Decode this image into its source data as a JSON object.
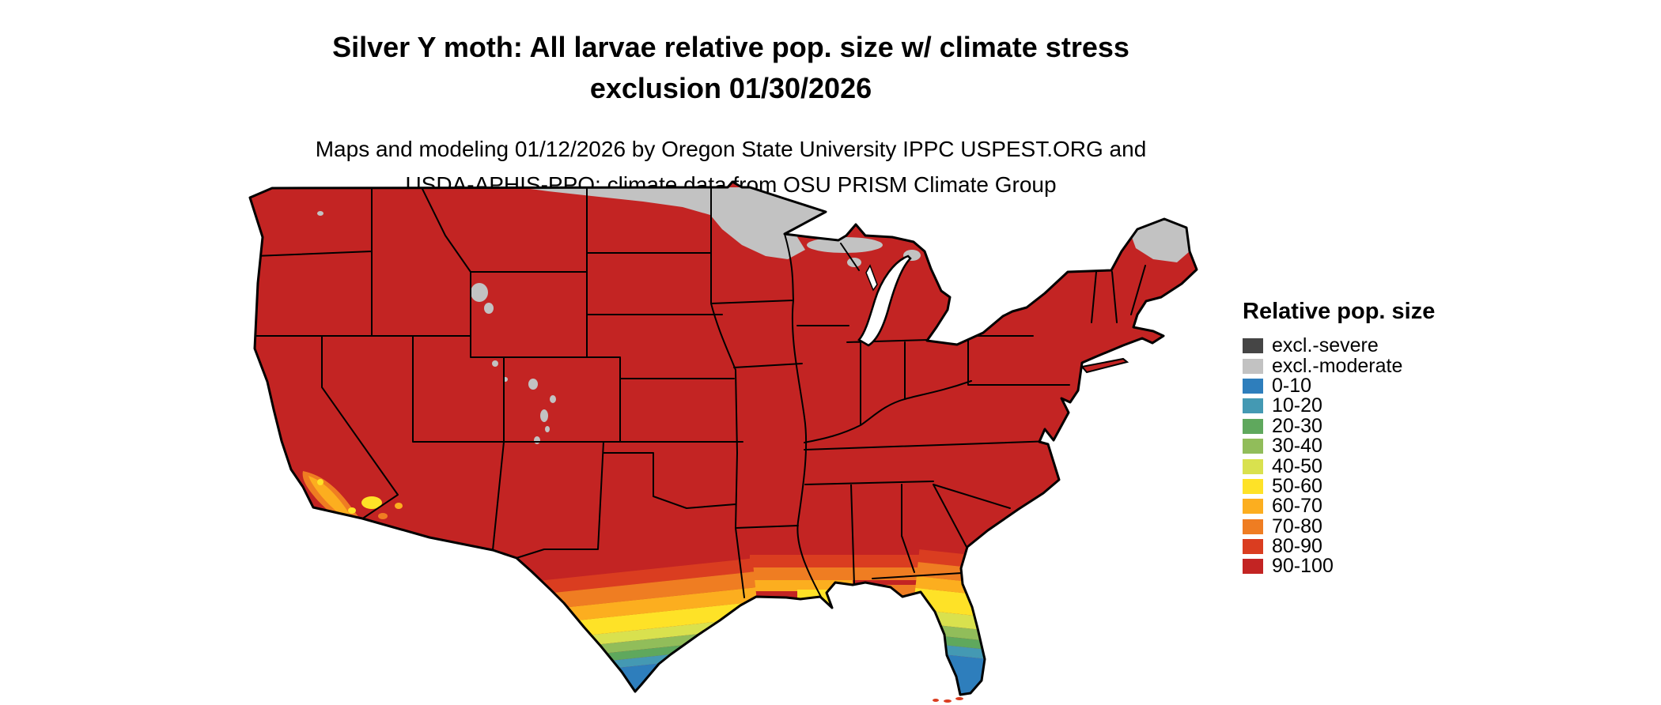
{
  "header": {
    "title_line1": "Silver Y moth: All larvae relative pop. size w/ climate stress",
    "title_line2": "exclusion 01/30/2026",
    "subtitle_line1": "Maps and modeling 01/12/2026 by Oregon State University IPPC USPEST.ORG and",
    "subtitle_line2": "USDA-APHIS-PPQ; climate data from OSU PRISM Climate Group"
  },
  "legend": {
    "title": "Relative pop. size",
    "items": [
      {
        "label": "excl.-severe",
        "color": "#454545"
      },
      {
        "label": "excl.-moderate",
        "color": "#c2c2c2"
      },
      {
        "label": "0-10",
        "color": "#2e7ebc"
      },
      {
        "label": "10-20",
        "color": "#4499b3"
      },
      {
        "label": "20-30",
        "color": "#5fa85d"
      },
      {
        "label": "30-40",
        "color": "#91bd5a"
      },
      {
        "label": "40-50",
        "color": "#d9e14e"
      },
      {
        "label": "50-60",
        "color": "#fee227"
      },
      {
        "label": "60-70",
        "color": "#fcae1f"
      },
      {
        "label": "70-80",
        "color": "#ef7d22"
      },
      {
        "label": "80-90",
        "color": "#da3d20"
      },
      {
        "label": "90-100",
        "color": "#c32423"
      }
    ]
  },
  "map": {
    "region": "Contiguous United States",
    "dominant_class": "90-100"
  }
}
